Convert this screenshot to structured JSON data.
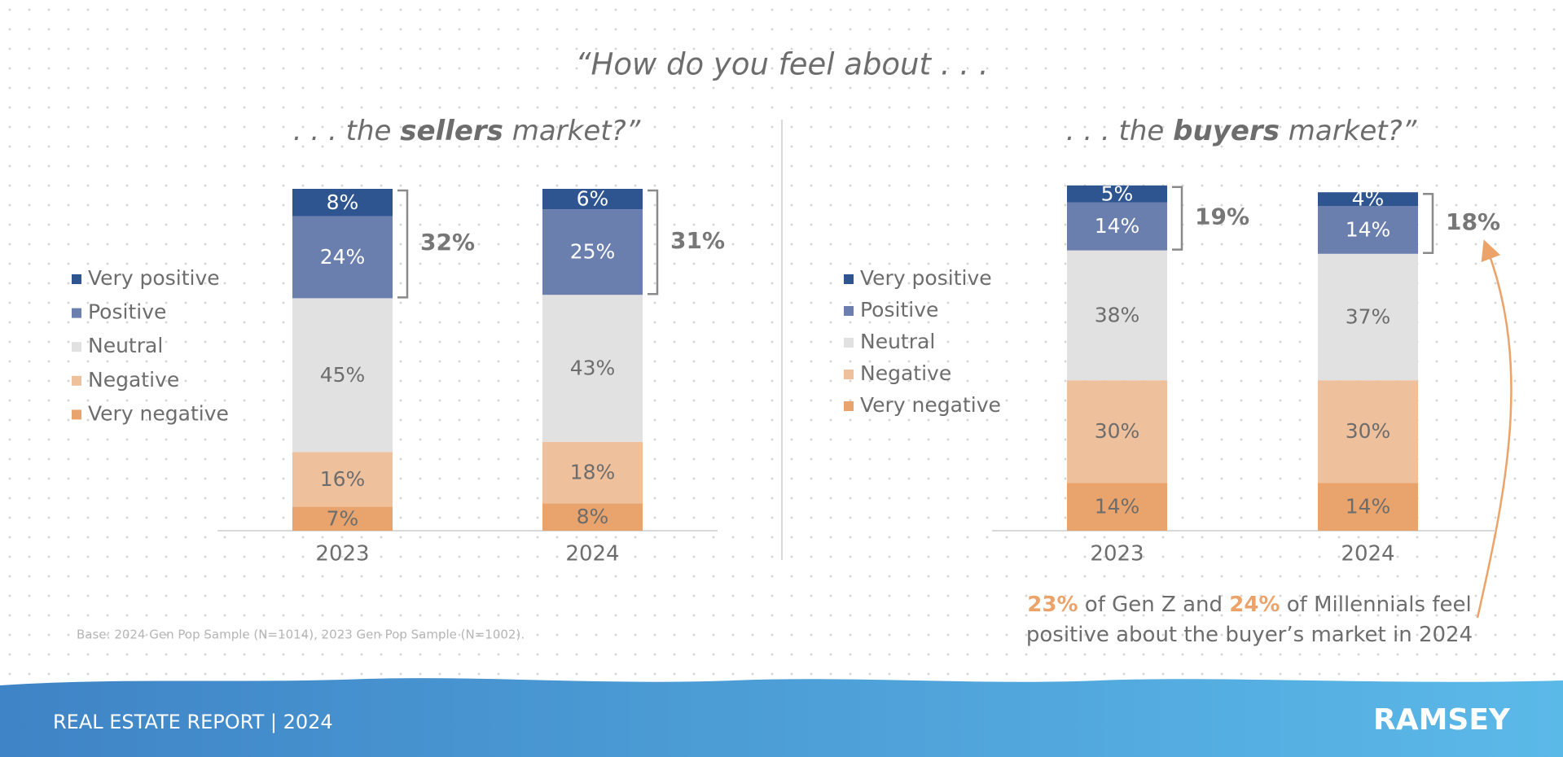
{
  "title": "“How do you feel about . . .",
  "chart_data": [
    {
      "type": "bar",
      "title_parts": [
        ". . . the ",
        "sellers",
        " market?”"
      ],
      "categories": [
        "2023",
        "2024"
      ],
      "series": [
        {
          "name": "Very positive",
          "color": "#2e5590",
          "values": [
            8,
            6
          ],
          "value_labels": [
            "8%",
            "6%"
          ]
        },
        {
          "name": "Positive",
          "color": "#6b7fae",
          "values": [
            24,
            25
          ],
          "value_labels": [
            "24%",
            "25%"
          ]
        },
        {
          "name": "Neutral",
          "color": "#e1e1e1",
          "values": [
            45,
            43
          ],
          "value_labels": [
            "45%",
            "43%"
          ]
        },
        {
          "name": "Negative",
          "color": "#efc09c",
          "values": [
            16,
            18
          ],
          "value_labels": [
            "16%",
            "18%"
          ]
        },
        {
          "name": "Very negative",
          "color": "#e8a46c",
          "values": [
            7,
            8
          ],
          "value_labels": [
            "7%",
            "8%"
          ]
        }
      ],
      "bracket": {
        "values": [
          32,
          31
        ],
        "value_labels": [
          "32%",
          "31%"
        ]
      }
    },
    {
      "type": "bar",
      "title_parts": [
        ". . . the ",
        "buyers",
        " market?”"
      ],
      "categories": [
        "2023",
        "2024"
      ],
      "series": [
        {
          "name": "Very positive",
          "color": "#2e5590",
          "values": [
            5,
            4
          ],
          "value_labels": [
            "5%",
            "4%"
          ]
        },
        {
          "name": "Positive",
          "color": "#6b7fae",
          "values": [
            14,
            14
          ],
          "value_labels": [
            "14%",
            "14%"
          ]
        },
        {
          "name": "Neutral",
          "color": "#e1e1e1",
          "values": [
            38,
            37
          ],
          "value_labels": [
            "38%",
            "37%"
          ]
        },
        {
          "name": "Negative",
          "color": "#efc09c",
          "values": [
            30,
            30
          ],
          "value_labels": [
            "30%",
            "30%"
          ]
        },
        {
          "name": "Very negative",
          "color": "#e8a46c",
          "values": [
            14,
            14
          ],
          "value_labels": [
            "14%",
            "14%"
          ]
        }
      ],
      "bracket": {
        "values": [
          19,
          18
        ],
        "value_labels": [
          "19%",
          "18%"
        ]
      }
    }
  ],
  "footnote": "Base: 2024 Gen Pop Sample (N=1014), 2023 Gen Pop Sample (N=1002).",
  "callout": {
    "lines": [
      [
        "23%",
        " of Gen Z and ",
        "24%",
        " of Millennials feel"
      ],
      [
        "positive about the buyer’s market in 2024"
      ]
    ]
  },
  "footer": {
    "report": "REAL ESTATE REPORT | 2024",
    "brand": "RAMSEY"
  }
}
